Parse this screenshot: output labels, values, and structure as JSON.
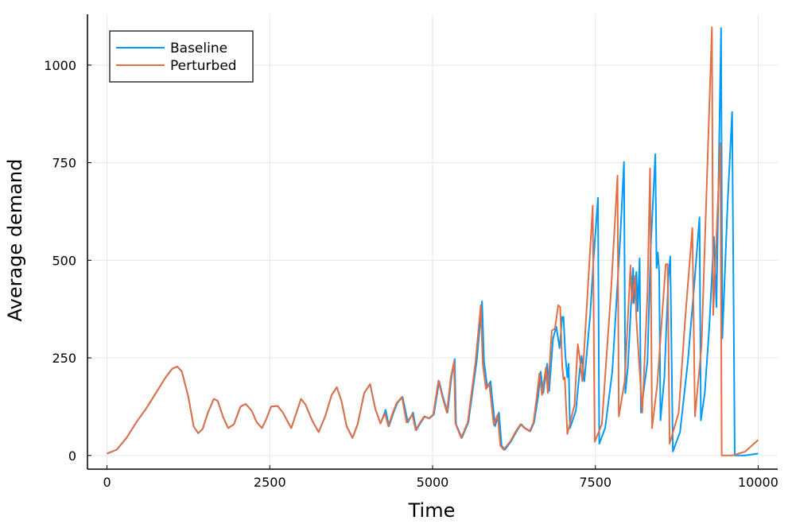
{
  "chart_data": {
    "type": "line",
    "title": "",
    "xlabel": "Time",
    "ylabel": "Average demand",
    "xlim": [
      -300,
      10300
    ],
    "ylim": [
      -35,
      1130
    ],
    "xticks": [
      0,
      2500,
      5000,
      7500,
      10000
    ],
    "xtick_labels": [
      "0",
      "2500",
      "5000",
      "7500",
      "10000"
    ],
    "yticks": [
      0,
      250,
      500,
      750,
      1000
    ],
    "ytick_labels": [
      "0",
      "250",
      "500",
      "750",
      "1000"
    ],
    "grid": true,
    "legend": {
      "placement": "top-left",
      "entries": [
        "Baseline",
        "Perturbed"
      ]
    },
    "series": [
      {
        "name": "Baseline",
        "color": "#009af9",
        "points": [
          [
            0,
            5
          ],
          [
            150,
            15
          ],
          [
            300,
            45
          ],
          [
            450,
            85
          ],
          [
            600,
            120
          ],
          [
            750,
            160
          ],
          [
            900,
            200
          ],
          [
            1000,
            222
          ],
          [
            1080,
            228
          ],
          [
            1150,
            215
          ],
          [
            1250,
            150
          ],
          [
            1330,
            75
          ],
          [
            1400,
            57
          ],
          [
            1470,
            68
          ],
          [
            1550,
            110
          ],
          [
            1640,
            145
          ],
          [
            1700,
            140
          ],
          [
            1780,
            100
          ],
          [
            1860,
            70
          ],
          [
            1950,
            80
          ],
          [
            2050,
            125
          ],
          [
            2130,
            132
          ],
          [
            2220,
            115
          ],
          [
            2300,
            85
          ],
          [
            2380,
            70
          ],
          [
            2450,
            95
          ],
          [
            2520,
            125
          ],
          [
            2620,
            127
          ],
          [
            2700,
            110
          ],
          [
            2780,
            85
          ],
          [
            2830,
            70
          ],
          [
            2900,
            105
          ],
          [
            2980,
            145
          ],
          [
            3050,
            130
          ],
          [
            3150,
            90
          ],
          [
            3250,
            60
          ],
          [
            3350,
            100
          ],
          [
            3450,
            155
          ],
          [
            3530,
            175
          ],
          [
            3600,
            140
          ],
          [
            3680,
            75
          ],
          [
            3770,
            45
          ],
          [
            3850,
            80
          ],
          [
            3950,
            160
          ],
          [
            4040,
            183
          ],
          [
            4120,
            120
          ],
          [
            4200,
            82
          ],
          [
            4280,
            117
          ],
          [
            4330,
            75
          ],
          [
            4400,
            110
          ],
          [
            4460,
            135
          ],
          [
            4540,
            150
          ],
          [
            4620,
            85
          ],
          [
            4700,
            110
          ],
          [
            4750,
            65
          ],
          [
            4820,
            85
          ],
          [
            4880,
            100
          ],
          [
            4950,
            95
          ],
          [
            5020,
            105
          ],
          [
            5100,
            190
          ],
          [
            5160,
            150
          ],
          [
            5230,
            110
          ],
          [
            5290,
            200
          ],
          [
            5340,
            247
          ],
          [
            5360,
            80
          ],
          [
            5450,
            45
          ],
          [
            5550,
            85
          ],
          [
            5680,
            245
          ],
          [
            5760,
            395
          ],
          [
            5790,
            240
          ],
          [
            5840,
            175
          ],
          [
            5890,
            190
          ],
          [
            5960,
            75
          ],
          [
            6020,
            110
          ],
          [
            6060,
            25
          ],
          [
            6110,
            15
          ],
          [
            6200,
            35
          ],
          [
            6300,
            65
          ],
          [
            6360,
            80
          ],
          [
            6420,
            70
          ],
          [
            6500,
            62
          ],
          [
            6560,
            85
          ],
          [
            6620,
            150
          ],
          [
            6660,
            215
          ],
          [
            6700,
            160
          ],
          [
            6760,
            235
          ],
          [
            6790,
            165
          ],
          [
            6850,
            300
          ],
          [
            6900,
            330
          ],
          [
            6950,
            275
          ],
          [
            6990,
            355
          ],
          [
            7010,
            355
          ],
          [
            7040,
            255
          ],
          [
            7070,
            200
          ],
          [
            7090,
            235
          ],
          [
            7110,
            70
          ],
          [
            7200,
            115
          ],
          [
            7260,
            220
          ],
          [
            7290,
            255
          ],
          [
            7330,
            190
          ],
          [
            7420,
            360
          ],
          [
            7470,
            500
          ],
          [
            7540,
            660
          ],
          [
            7560,
            30
          ],
          [
            7650,
            70
          ],
          [
            7760,
            215
          ],
          [
            7880,
            550
          ],
          [
            7940,
            752
          ],
          [
            7960,
            160
          ],
          [
            8000,
            230
          ],
          [
            8050,
            395
          ],
          [
            8080,
            480
          ],
          [
            8090,
            390
          ],
          [
            8130,
            470
          ],
          [
            8150,
            370
          ],
          [
            8180,
            505
          ],
          [
            8200,
            110
          ],
          [
            8300,
            240
          ],
          [
            8350,
            530
          ],
          [
            8420,
            772
          ],
          [
            8440,
            480
          ],
          [
            8460,
            520
          ],
          [
            8480,
            470
          ],
          [
            8500,
            90
          ],
          [
            8560,
            200
          ],
          [
            8620,
            450
          ],
          [
            8650,
            510
          ],
          [
            8690,
            10
          ],
          [
            8800,
            60
          ],
          [
            8920,
            240
          ],
          [
            9020,
            440
          ],
          [
            9100,
            610
          ],
          [
            9120,
            90
          ],
          [
            9180,
            160
          ],
          [
            9250,
            330
          ],
          [
            9320,
            560
          ],
          [
            9360,
            380
          ],
          [
            9430,
            1095
          ],
          [
            9450,
            300
          ],
          [
            9530,
            640
          ],
          [
            9600,
            880
          ],
          [
            9640,
            0
          ],
          [
            9800,
            0
          ],
          [
            10000,
            5
          ]
        ]
      },
      {
        "name": "Perturbed",
        "color": "#e26f46",
        "points": [
          [
            0,
            5
          ],
          [
            150,
            15
          ],
          [
            300,
            45
          ],
          [
            450,
            85
          ],
          [
            600,
            120
          ],
          [
            750,
            160
          ],
          [
            900,
            200
          ],
          [
            1000,
            222
          ],
          [
            1080,
            228
          ],
          [
            1150,
            215
          ],
          [
            1250,
            150
          ],
          [
            1330,
            75
          ],
          [
            1400,
            57
          ],
          [
            1470,
            68
          ],
          [
            1550,
            110
          ],
          [
            1640,
            145
          ],
          [
            1700,
            140
          ],
          [
            1780,
            100
          ],
          [
            1860,
            70
          ],
          [
            1950,
            80
          ],
          [
            2050,
            125
          ],
          [
            2130,
            132
          ],
          [
            2220,
            115
          ],
          [
            2300,
            85
          ],
          [
            2380,
            70
          ],
          [
            2450,
            95
          ],
          [
            2520,
            125
          ],
          [
            2620,
            127
          ],
          [
            2700,
            110
          ],
          [
            2780,
            85
          ],
          [
            2830,
            70
          ],
          [
            2900,
            105
          ],
          [
            2980,
            145
          ],
          [
            3050,
            130
          ],
          [
            3150,
            90
          ],
          [
            3250,
            60
          ],
          [
            3350,
            100
          ],
          [
            3450,
            155
          ],
          [
            3530,
            175
          ],
          [
            3600,
            140
          ],
          [
            3680,
            75
          ],
          [
            3770,
            45
          ],
          [
            3850,
            80
          ],
          [
            3950,
            160
          ],
          [
            4040,
            183
          ],
          [
            4120,
            120
          ],
          [
            4200,
            82
          ],
          [
            4270,
            108
          ],
          [
            4320,
            75
          ],
          [
            4390,
            110
          ],
          [
            4450,
            135
          ],
          [
            4530,
            150
          ],
          [
            4600,
            85
          ],
          [
            4690,
            105
          ],
          [
            4740,
            65
          ],
          [
            4810,
            85
          ],
          [
            4870,
            100
          ],
          [
            4940,
            95
          ],
          [
            5010,
            105
          ],
          [
            5090,
            192
          ],
          [
            5150,
            150
          ],
          [
            5220,
            110
          ],
          [
            5280,
            200
          ],
          [
            5330,
            240
          ],
          [
            5350,
            82
          ],
          [
            5440,
            45
          ],
          [
            5540,
            85
          ],
          [
            5660,
            240
          ],
          [
            5740,
            385
          ],
          [
            5770,
            235
          ],
          [
            5820,
            170
          ],
          [
            5870,
            185
          ],
          [
            5940,
            78
          ],
          [
            6000,
            105
          ],
          [
            6040,
            25
          ],
          [
            6090,
            15
          ],
          [
            6190,
            35
          ],
          [
            6290,
            65
          ],
          [
            6350,
            80
          ],
          [
            6410,
            70
          ],
          [
            6490,
            62
          ],
          [
            6550,
            85
          ],
          [
            6600,
            150
          ],
          [
            6640,
            210
          ],
          [
            6680,
            155
          ],
          [
            6740,
            225
          ],
          [
            6770,
            160
          ],
          [
            6830,
            320
          ],
          [
            6880,
            325
          ],
          [
            6930,
            385
          ],
          [
            6960,
            380
          ],
          [
            6990,
            230
          ],
          [
            7010,
            195
          ],
          [
            7030,
            200
          ],
          [
            7070,
            55
          ],
          [
            7180,
            130
          ],
          [
            7230,
            285
          ],
          [
            7260,
            250
          ],
          [
            7300,
            190
          ],
          [
            7400,
            470
          ],
          [
            7460,
            640
          ],
          [
            7490,
            35
          ],
          [
            7600,
            80
          ],
          [
            7740,
            420
          ],
          [
            7840,
            717
          ],
          [
            7860,
            100
          ],
          [
            7950,
            190
          ],
          [
            8040,
            487
          ],
          [
            8060,
            390
          ],
          [
            8110,
            460
          ],
          [
            8130,
            350
          ],
          [
            8220,
            110
          ],
          [
            8300,
            410
          ],
          [
            8340,
            735
          ],
          [
            8370,
            70
          ],
          [
            8450,
            180
          ],
          [
            8580,
            490
          ],
          [
            8610,
            490
          ],
          [
            8640,
            30
          ],
          [
            8780,
            110
          ],
          [
            8880,
            350
          ],
          [
            8990,
            583
          ],
          [
            9030,
            100
          ],
          [
            9130,
            280
          ],
          [
            9290,
            1097
          ],
          [
            9310,
            360
          ],
          [
            9420,
            800
          ],
          [
            9440,
            0
          ],
          [
            9600,
            0
          ],
          [
            9800,
            10
          ],
          [
            10000,
            40
          ]
        ]
      }
    ]
  }
}
